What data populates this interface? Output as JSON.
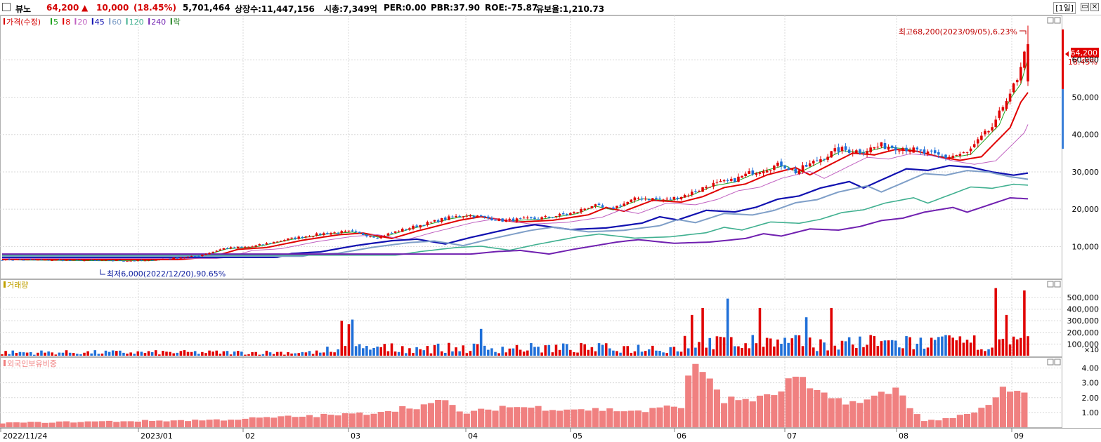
{
  "header": {
    "stock_name": "뷰노",
    "price": "64,200",
    "change_arrow": "▲",
    "change": "10,000",
    "change_pct": "(18.45%)",
    "volume": "5,701,464",
    "listed_shares": "상장수:11,447,156",
    "market_cap": "시총:7,349억",
    "per": "PER:0.00",
    "pbr": "PBR:37.90",
    "roe": "ROE:-75.87",
    "float_ratio": "유보율:1,210.73",
    "period": "[1일]",
    "window_buttons": [
      "▭",
      "×"
    ]
  },
  "price_panel": {
    "legend": [
      {
        "label": "가격(수정)",
        "color": "#d40000"
      },
      {
        "label": "5",
        "color": "#1fa31f"
      },
      {
        "label": "8",
        "color": "#e00000"
      },
      {
        "label": "20",
        "color": "#c060c0"
      },
      {
        "label": "45",
        "color": "#1010b0"
      },
      {
        "label": "60",
        "color": "#7f9fc8"
      },
      {
        "label": "120",
        "color": "#40b090"
      },
      {
        "label": "240",
        "color": "#7020b0"
      },
      {
        "label": "락",
        "color": "#208020"
      }
    ],
    "high_annotation": "최고68,200(2023/09/05),6.23%",
    "low_annotation": "최저6,000(2022/12/20),90.65%",
    "current_price_label": "64,200",
    "current_pct_label": "18.45%",
    "y_ticks": [
      "60,000",
      "50,000",
      "40,000",
      "30,000",
      "20,000",
      "10,000"
    ]
  },
  "volume_panel": {
    "title": "거래량",
    "y_ticks": [
      "500,000",
      "400,000",
      "300,000",
      "200,000",
      "100,000"
    ],
    "unit": "×10"
  },
  "foreign_panel": {
    "title": "외국인보유비중",
    "y_ticks": [
      "4.00",
      "3.00",
      "2.00",
      "1.00"
    ]
  },
  "x_axis": {
    "labels": [
      "2022/11/24",
      "2023/01",
      "02",
      "03",
      "04",
      "05",
      "06",
      "07",
      "08",
      "09"
    ]
  },
  "colors": {
    "up": "#e00000",
    "down": "#1f6fd8",
    "foreign_bar": "#f08080"
  },
  "chart_data": {
    "type": "candlestick",
    "dates": {
      "start": "2022-11-24",
      "end": "2023-09-05"
    },
    "price_range": [
      2000,
      70000
    ],
    "price_control_points": [
      [
        0,
        6500
      ],
      [
        20,
        6300
      ],
      [
        40,
        6200
      ],
      [
        55,
        7500
      ],
      [
        62,
        9500
      ],
      [
        70,
        10000
      ],
      [
        80,
        12000
      ],
      [
        90,
        13500
      ],
      [
        97,
        14000
      ],
      [
        105,
        12500
      ],
      [
        112,
        14500
      ],
      [
        118,
        16000
      ],
      [
        124,
        17500
      ],
      [
        130,
        18500
      ],
      [
        140,
        17000
      ],
      [
        150,
        17500
      ],
      [
        160,
        19000
      ],
      [
        165,
        21000
      ],
      [
        170,
        20000
      ],
      [
        178,
        23000
      ],
      [
        186,
        22500
      ],
      [
        192,
        24000
      ],
      [
        198,
        26500
      ],
      [
        204,
        27500
      ],
      [
        210,
        30000
      ],
      [
        218,
        32000
      ],
      [
        222,
        30000
      ],
      [
        228,
        33000
      ],
      [
        234,
        36000
      ],
      [
        240,
        35500
      ],
      [
        246,
        37000
      ],
      [
        252,
        36500
      ],
      [
        258,
        35000
      ],
      [
        264,
        34000
      ],
      [
        270,
        35000
      ],
      [
        278,
        43000
      ],
      [
        281,
        50000
      ],
      [
        284,
        54000
      ],
      [
        287,
        64200
      ]
    ],
    "ma_lines": [
      {
        "name": "5",
        "offset": 0.02
      },
      {
        "name": "8",
        "offset": 0.06
      },
      {
        "name": "20",
        "offset": 0.13
      },
      {
        "name": "45",
        "offset": 0.32
      },
      {
        "name": "60",
        "offset": 0.4
      },
      {
        "name": "120",
        "offset": 0.62
      },
      {
        "name": "240",
        "offset": 0.8
      }
    ],
    "volume_range": [
      0,
      560000
    ],
    "volume_spikes": [
      [
        95,
        300000
      ],
      [
        97,
        270000
      ],
      [
        98,
        310000
      ],
      [
        134,
        230000
      ],
      [
        193,
        350000
      ],
      [
        196,
        410000
      ],
      [
        203,
        490000
      ],
      [
        212,
        410000
      ],
      [
        225,
        330000
      ],
      [
        232,
        410000
      ],
      [
        278,
        580000
      ],
      [
        281,
        350000
      ],
      [
        286,
        560000
      ]
    ],
    "foreign_range": [
      0,
      4.5
    ],
    "foreign_levels": [
      [
        0,
        0.3
      ],
      [
        60,
        0.5
      ],
      [
        100,
        0.9
      ],
      [
        124,
        1.7
      ],
      [
        130,
        0.9
      ],
      [
        140,
        1.4
      ],
      [
        180,
        1.1
      ],
      [
        190,
        1.5
      ],
      [
        193,
        4.0
      ],
      [
        197,
        3.8
      ],
      [
        202,
        1.8
      ],
      [
        215,
        2.0
      ],
      [
        222,
        3.4
      ],
      [
        228,
        2.2
      ],
      [
        240,
        1.6
      ],
      [
        250,
        2.6
      ],
      [
        258,
        0.4
      ],
      [
        270,
        0.8
      ],
      [
        276,
        1.4
      ],
      [
        280,
        2.6
      ],
      [
        287,
        2.1
      ]
    ]
  }
}
